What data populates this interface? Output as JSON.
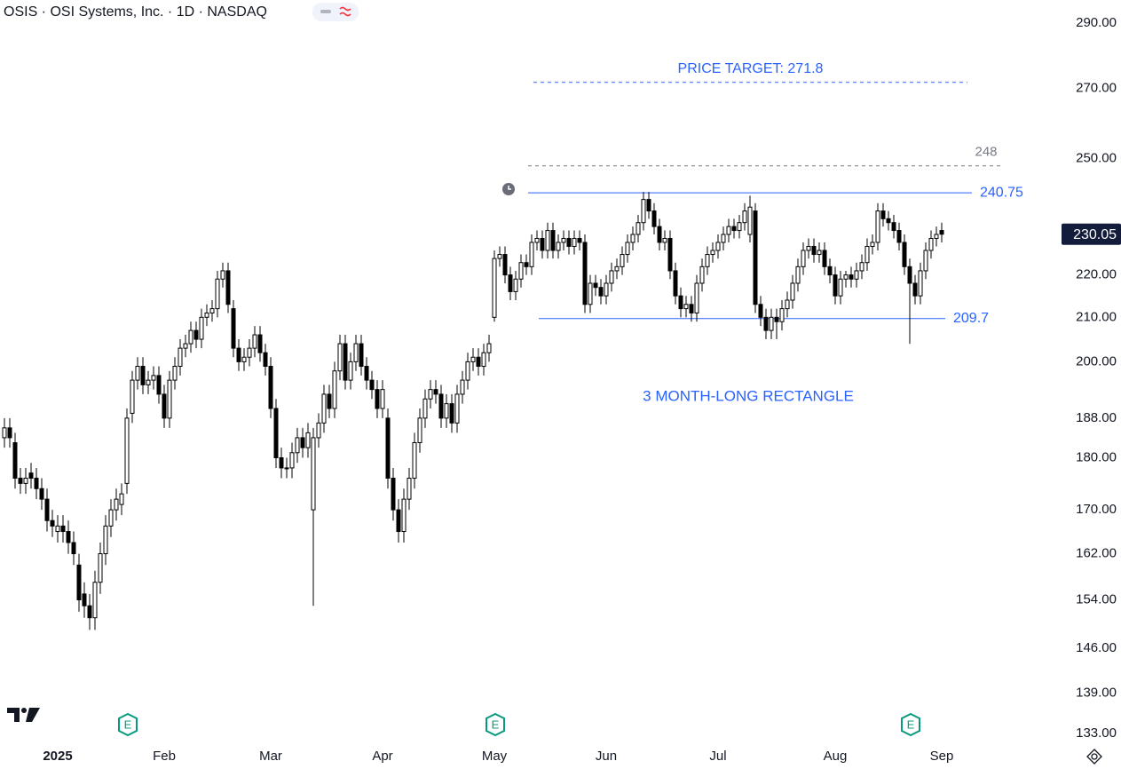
{
  "chart_data": {
    "type": "candlestick",
    "title": "OSIS · OSI Systems, Inc. · 1D · NASDAQ",
    "log_scale": true,
    "ylim": [
      131.7,
      297.5
    ],
    "yticks": [
      {
        "value": 290,
        "label": "290.00"
      },
      {
        "value": 270,
        "label": "270.00"
      },
      {
        "value": 250,
        "label": "250.00"
      },
      {
        "value": 220,
        "label": "220.00"
      },
      {
        "value": 210,
        "label": "210.00"
      },
      {
        "value": 200,
        "label": "200.00"
      },
      {
        "value": 188,
        "label": "188.00"
      },
      {
        "value": 180,
        "label": "180.00"
      },
      {
        "value": 170,
        "label": "170.00"
      },
      {
        "value": 162,
        "label": "162.00"
      },
      {
        "value": 154,
        "label": "154.00"
      },
      {
        "value": 146,
        "label": "146.00"
      },
      {
        "value": 139,
        "label": "139.00"
      },
      {
        "value": 133,
        "label": "133.00"
      }
    ],
    "up_color": "#ffffff",
    "down_color": "#000000",
    "last_price_color": "#131d3b",
    "x": [
      null,
      null,
      null,
      null,
      null,
      null,
      null,
      null,
      null,
      null,
      "2025",
      null,
      null,
      null,
      null,
      null,
      null,
      null,
      null,
      null,
      null,
      null,
      null,
      null,
      null,
      null,
      null,
      null,
      null,
      null,
      "Feb",
      null,
      null,
      null,
      null,
      null,
      null,
      null,
      null,
      null,
      null,
      null,
      null,
      null,
      null,
      null,
      null,
      null,
      null,
      null,
      "Mar",
      null,
      null,
      null,
      null,
      null,
      null,
      null,
      null,
      null,
      null,
      null,
      null,
      null,
      null,
      null,
      null,
      null,
      null,
      null,
      null,
      "Apr",
      null,
      null,
      null,
      null,
      null,
      null,
      null,
      null,
      null,
      null,
      null,
      null,
      null,
      null,
      null,
      null,
      null,
      null,
      null,
      null,
      "May",
      null,
      null,
      null,
      null,
      null,
      null,
      null,
      null,
      null,
      null,
      null,
      null,
      null,
      null,
      null,
      null,
      null,
      null,
      null,
      null,
      "Jun",
      null,
      null,
      null,
      null,
      null,
      null,
      null,
      null,
      null,
      null,
      null,
      null,
      null,
      null,
      null,
      null,
      null,
      null,
      null,
      null,
      "Jul",
      null,
      null,
      null,
      null,
      null,
      null,
      null,
      null,
      null,
      null,
      null,
      null,
      null,
      null,
      null,
      null,
      null,
      null,
      null,
      null,
      null,
      "Aug",
      null,
      null,
      null,
      null,
      null,
      null,
      null,
      null,
      null,
      null,
      null,
      null,
      null,
      null,
      null,
      null,
      null,
      null,
      null,
      "Sep"
    ],
    "open": [
      184,
      186,
      183,
      176,
      175,
      177,
      176,
      174,
      172,
      168,
      166,
      167,
      166,
      164,
      160,
      155,
      153,
      151,
      157,
      162,
      167,
      170,
      171,
      175,
      189,
      196,
      199,
      195,
      196,
      197,
      193,
      188,
      196,
      199,
      203,
      204,
      207,
      205,
      210,
      211,
      212,
      219,
      221,
      212,
      203,
      200,
      201,
      203,
      206,
      202,
      199,
      190,
      180,
      178,
      178,
      181,
      184,
      182,
      170,
      184,
      187,
      193,
      190,
      198,
      204,
      196,
      200,
      204,
      199,
      196,
      194,
      190,
      188,
      176,
      170,
      166,
      172,
      176,
      183,
      188,
      192,
      194,
      193,
      188,
      191,
      187,
      193,
      196,
      200,
      201,
      199,
      202,
      210,
      224,
      225,
      220,
      216,
      219,
      223,
      222,
      228,
      229,
      226,
      231,
      226,
      228,
      229,
      227,
      229,
      228,
      213,
      218,
      217,
      215,
      218,
      221,
      222,
      225,
      228,
      230,
      233,
      239,
      236,
      232,
      228,
      229,
      221,
      215,
      212,
      213,
      211,
      218,
      222,
      225,
      226,
      228,
      230,
      232,
      231,
      233,
      230,
      236,
      213,
      210,
      207,
      210,
      209,
      212,
      214,
      218,
      222,
      226,
      227,
      225,
      226,
      222,
      220,
      215,
      219,
      220,
      219,
      221,
      223,
      227,
      228,
      236,
      234,
      233,
      231,
      228,
      222,
      218,
      215,
      221,
      226,
      229,
      231
    ],
    "high": [
      188,
      188,
      185,
      178,
      178,
      179,
      178,
      176,
      174,
      170,
      169,
      169,
      168,
      166,
      162,
      157,
      155,
      159,
      164,
      169,
      172,
      174,
      175,
      190,
      198,
      201,
      201,
      198,
      199,
      199,
      195,
      198,
      201,
      205,
      206,
      209,
      209,
      212,
      213,
      214,
      221,
      223,
      223,
      214,
      205,
      203,
      205,
      208,
      208,
      204,
      201,
      192,
      182,
      180,
      183,
      186,
      186,
      187,
      186,
      189,
      195,
      195,
      200,
      206,
      206,
      202,
      206,
      206,
      201,
      198,
      196,
      196,
      190,
      178,
      172,
      174,
      178,
      185,
      190,
      194,
      196,
      196,
      195,
      193,
      193,
      195,
      198,
      202,
      203,
      203,
      204,
      206,
      226,
      227,
      227,
      222,
      221,
      225,
      225,
      230,
      231,
      231,
      233,
      233,
      230,
      231,
      231,
      231,
      231,
      230,
      220,
      220,
      219,
      220,
      223,
      224,
      227,
      230,
      232,
      235,
      241,
      241,
      238,
      234,
      231,
      231,
      223,
      217,
      215,
      215,
      220,
      224,
      227,
      228,
      230,
      232,
      234,
      234,
      235,
      238,
      240,
      238,
      215,
      212,
      212,
      212,
      214,
      216,
      220,
      224,
      228,
      229,
      229,
      228,
      228,
      224,
      222,
      221,
      221,
      222,
      223,
      225,
      229,
      230,
      238,
      238,
      236,
      235,
      233,
      230,
      224,
      220,
      223,
      228,
      231,
      232,
      233
    ],
    "low": [
      182,
      182,
      174,
      173,
      173,
      174,
      172,
      170,
      166,
      165,
      164,
      164,
      162,
      160,
      152,
      151,
      149,
      149,
      155,
      160,
      165,
      168,
      169,
      173,
      187,
      194,
      193,
      193,
      194,
      191,
      186,
      186,
      194,
      197,
      201,
      202,
      203,
      203,
      208,
      209,
      210,
      217,
      211,
      201,
      198,
      198,
      199,
      201,
      200,
      197,
      188,
      178,
      176,
      176,
      176,
      179,
      180,
      180,
      153,
      182,
      185,
      188,
      188,
      196,
      194,
      194,
      198,
      197,
      194,
      192,
      188,
      188,
      174,
      168,
      164,
      164,
      170,
      174,
      181,
      186,
      190,
      191,
      186,
      186,
      185,
      185,
      191,
      194,
      198,
      197,
      197,
      200,
      209,
      222,
      218,
      214,
      214,
      217,
      220,
      220,
      226,
      224,
      224,
      224,
      224,
      226,
      225,
      225,
      226,
      211,
      211,
      215,
      213,
      213,
      216,
      219,
      220,
      223,
      226,
      228,
      231,
      234,
      230,
      226,
      226,
      219,
      213,
      210,
      210,
      209,
      209,
      216,
      220,
      223,
      224,
      226,
      228,
      229,
      229,
      231,
      228,
      211,
      208,
      205,
      205,
      205,
      207,
      210,
      212,
      216,
      220,
      224,
      223,
      223,
      220,
      218,
      213,
      213,
      217,
      217,
      217,
      219,
      221,
      225,
      226,
      232,
      231,
      229,
      226,
      220,
      204,
      213,
      213,
      219,
      224,
      227,
      228
    ],
    "close": [
      186,
      184,
      176,
      175,
      176,
      176,
      174,
      172,
      168,
      167,
      167,
      166,
      164,
      162,
      154,
      153,
      151,
      157,
      162,
      167,
      170,
      172,
      173,
      188,
      196,
      199,
      195,
      196,
      197,
      193,
      188,
      196,
      199,
      203,
      204,
      207,
      205,
      210,
      211,
      212,
      219,
      221,
      213,
      203,
      200,
      201,
      203,
      206,
      202,
      199,
      190,
      180,
      178,
      178,
      181,
      184,
      182,
      185,
      184,
      187,
      193,
      190,
      198,
      204,
      196,
      200,
      204,
      199,
      196,
      194,
      190,
      194,
      176,
      170,
      166,
      172,
      176,
      183,
      188,
      192,
      194,
      193,
      188,
      191,
      187,
      193,
      196,
      200,
      201,
      199,
      202,
      204,
      224,
      225,
      220,
      216,
      219,
      223,
      222,
      228,
      229,
      226,
      231,
      226,
      228,
      229,
      227,
      229,
      228,
      213,
      218,
      217,
      215,
      218,
      221,
      222,
      225,
      228,
      230,
      233,
      239,
      236,
      232,
      228,
      229,
      221,
      215,
      212,
      213,
      211,
      218,
      222,
      225,
      226,
      228,
      230,
      232,
      231,
      233,
      236,
      237,
      213,
      210,
      207,
      210,
      209,
      212,
      214,
      218,
      222,
      226,
      227,
      225,
      226,
      222,
      220,
      215,
      219,
      220,
      219,
      221,
      223,
      227,
      228,
      236,
      234,
      233,
      231,
      228,
      222,
      218,
      215,
      221,
      226,
      229,
      230,
      230.05
    ],
    "levels": [
      {
        "label": "PRICE TARGET: 271.8",
        "value": 271.8,
        "color": "#2962ff",
        "dashed": true
      },
      {
        "value": 248,
        "color": "#787b86",
        "dashed": true
      },
      {
        "value": 240.75,
        "color": "#2962ff",
        "dashed": false
      },
      {
        "value": 209.7,
        "color": "#2962ff",
        "dashed": false
      }
    ],
    "annotations": [
      "3 MONTH-LONG RECTANGLE"
    ],
    "earnings_markers": [
      "E",
      "E",
      "E"
    ]
  }
}
